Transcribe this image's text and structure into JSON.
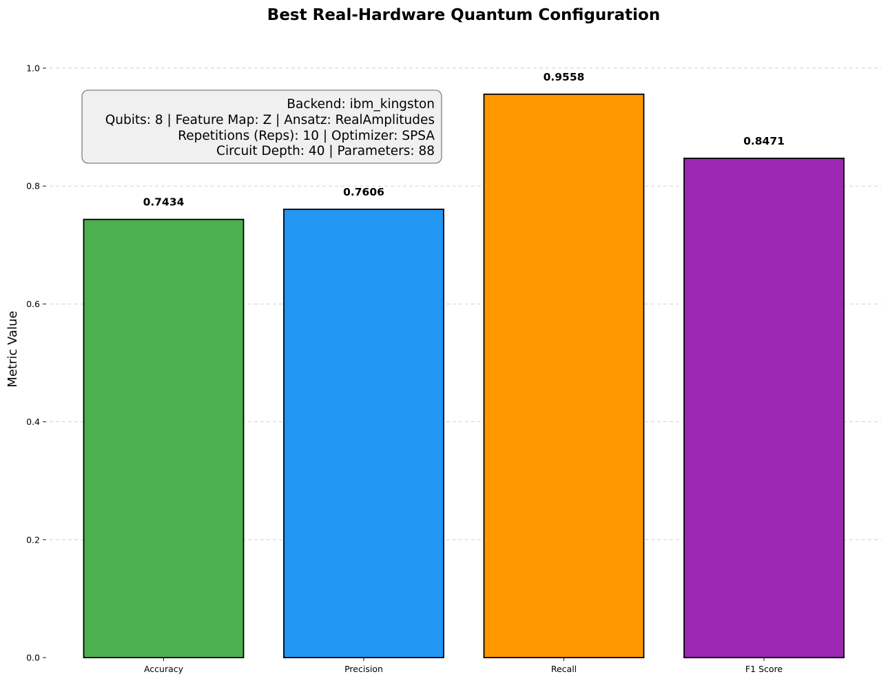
{
  "chart_data": {
    "type": "bar",
    "title": "Best Real-Hardware Quantum Configuration",
    "xlabel": "",
    "ylabel": "Metric Value",
    "categories": [
      "Accuracy",
      "Precision",
      "Recall",
      "F1 Score"
    ],
    "values": [
      0.7434,
      0.7606,
      0.9558,
      0.8471
    ],
    "value_labels": [
      "0.7434",
      "0.7606",
      "0.9558",
      "0.8471"
    ],
    "colors": [
      "#4caf50",
      "#2196f3",
      "#ff9800",
      "#9c27b0"
    ],
    "ylim": [
      0,
      1.0
    ],
    "yticks": [
      0.0,
      0.2,
      0.4,
      0.6,
      0.8,
      1.0
    ],
    "ytick_labels": [
      "0.0",
      "0.2",
      "0.4",
      "0.6",
      "0.8",
      "1.0"
    ],
    "grid": "y-dashed",
    "annotation": {
      "lines": [
        "Backend: ibm_kingston",
        "Qubits: 8 | Feature Map: Z | Ansatz: RealAmplitudes",
        "Repetitions (Reps): 10 | Optimizer: SPSA",
        "Circuit Depth: 40 | Parameters: 88"
      ],
      "placement": "top-left",
      "background": "#f0f0f0"
    }
  }
}
